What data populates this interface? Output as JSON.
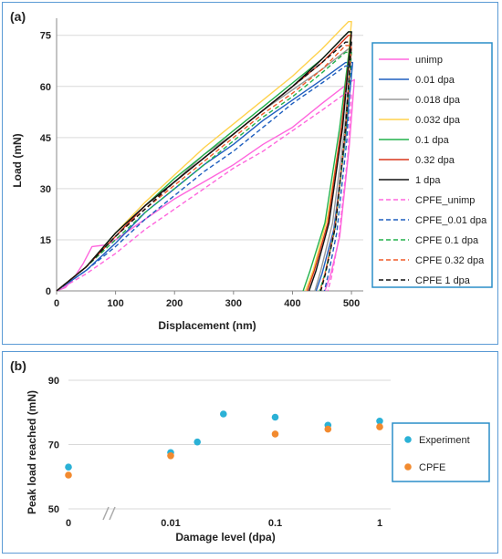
{
  "colors": {
    "unimp": "#ff66dd",
    "d0_01": "#1f5fbf",
    "d0_018": "#999999",
    "d0_032": "#ffd24d",
    "d0_1": "#22b14c",
    "d0_32": "#d9361c",
    "d1": "#111111",
    "cpfe_unimp": "#ff66dd",
    "cpfe_0_01": "#1f5fbf",
    "cpfe_0_1": "#22b14c",
    "cpfe_0_32": "#f05a28",
    "cpfe_1": "#111111",
    "experiment": "#2bb1d6",
    "cpfe": "#f28a2f",
    "frame": "#5b9bd5"
  },
  "chart_data": [
    {
      "type": "line",
      "panel_label": "(a)",
      "xlabel": "Displacement (nm)",
      "ylabel": "Load (mN)",
      "xlim": [
        0,
        520
      ],
      "ylim": [
        0,
        80
      ],
      "x_ticks": [
        "0",
        "100",
        "200",
        "300",
        "400",
        "500"
      ],
      "x_tick_values": [
        0,
        100,
        200,
        300,
        400,
        500
      ],
      "y_ticks": [
        "0",
        "15",
        "30",
        "45",
        "60",
        "75"
      ],
      "y_tick_values": [
        0,
        15,
        30,
        45,
        60,
        75
      ],
      "legend_position": "right",
      "series": [
        {
          "name": "unimp",
          "color_key": "unimp",
          "dashed": false,
          "points": [
            [
              0,
              0
            ],
            [
              15,
              1
            ],
            [
              30,
              4
            ],
            [
              45,
              8
            ],
            [
              60,
              13
            ],
            [
              85,
              13.5
            ],
            [
              100,
              15
            ],
            [
              150,
              21
            ],
            [
              200,
              27
            ],
            [
              250,
              32
            ],
            [
              300,
              37
            ],
            [
              350,
              43
            ],
            [
              400,
              48
            ],
            [
              450,
              55
            ],
            [
              495,
              61
            ],
            [
              505,
              62
            ],
            [
              496,
              42
            ],
            [
              480,
              16
            ],
            [
              465,
              5
            ],
            [
              455,
              0
            ]
          ]
        },
        {
          "name": "0.01 dpa",
          "color_key": "d0_01",
          "dashed": false,
          "points": [
            [
              0,
              0
            ],
            [
              50,
              6
            ],
            [
              100,
              14
            ],
            [
              150,
              23
            ],
            [
              200,
              30
            ],
            [
              250,
              37
            ],
            [
              300,
              43
            ],
            [
              350,
              50
            ],
            [
              400,
              56
            ],
            [
              450,
              62
            ],
            [
              490,
              67
            ],
            [
              502,
              67
            ],
            [
              490,
              45
            ],
            [
              470,
              18
            ],
            [
              450,
              5
            ],
            [
              440,
              0
            ]
          ]
        },
        {
          "name": "0.018 dpa",
          "color_key": "d0_018",
          "dashed": false,
          "points": [
            [
              0,
              0
            ],
            [
              50,
              7
            ],
            [
              100,
              16
            ],
            [
              150,
              25
            ],
            [
              200,
              32
            ],
            [
              250,
              40
            ],
            [
              300,
              46
            ],
            [
              350,
              53
            ],
            [
              400,
              59
            ],
            [
              450,
              65
            ],
            [
              495,
              71
            ],
            [
              500,
              71
            ],
            [
              488,
              47
            ],
            [
              468,
              20
            ],
            [
              448,
              6
            ],
            [
              438,
              0
            ]
          ]
        },
        {
          "name": "0.032 dpa",
          "color_key": "d0_032",
          "dashed": false,
          "points": [
            [
              0,
              0
            ],
            [
              50,
              7
            ],
            [
              100,
              17
            ],
            [
              150,
              26
            ],
            [
              200,
              34
            ],
            [
              250,
              42
            ],
            [
              300,
              49
            ],
            [
              350,
              56
            ],
            [
              400,
              63
            ],
            [
              450,
              71
            ],
            [
              495,
              79
            ],
            [
              500,
              79
            ],
            [
              485,
              50
            ],
            [
              460,
              22
            ],
            [
              435,
              6
            ],
            [
              422,
              0
            ]
          ]
        },
        {
          "name": "0.1 dpa",
          "color_key": "d0_1",
          "dashed": false,
          "points": [
            [
              0,
              0
            ],
            [
              50,
              7
            ],
            [
              100,
              17
            ],
            [
              150,
              25
            ],
            [
              200,
              33
            ],
            [
              250,
              40
            ],
            [
              300,
              47
            ],
            [
              350,
              54
            ],
            [
              400,
              61
            ],
            [
              450,
              68
            ],
            [
              495,
              76
            ],
            [
              500,
              76
            ],
            [
              480,
              48
            ],
            [
              455,
              20
            ],
            [
              430,
              6
            ],
            [
              418,
              0
            ]
          ]
        },
        {
          "name": "0.32 dpa",
          "color_key": "d0_32",
          "dashed": false,
          "points": [
            [
              0,
              0
            ],
            [
              50,
              7
            ],
            [
              100,
              16
            ],
            [
              150,
              25
            ],
            [
              200,
              32
            ],
            [
              250,
              39
            ],
            [
              300,
              46
            ],
            [
              350,
              53
            ],
            [
              400,
              60
            ],
            [
              450,
              67
            ],
            [
              495,
              75
            ],
            [
              500,
              75
            ],
            [
              483,
              48
            ],
            [
              460,
              20
            ],
            [
              437,
              6
            ],
            [
              425,
              0
            ]
          ]
        },
        {
          "name": "1 dpa",
          "color_key": "d1",
          "dashed": false,
          "points": [
            [
              0,
              0
            ],
            [
              50,
              7
            ],
            [
              100,
              17
            ],
            [
              150,
              25
            ],
            [
              200,
              32
            ],
            [
              250,
              39
            ],
            [
              300,
              46
            ],
            [
              350,
              53
            ],
            [
              400,
              60
            ],
            [
              450,
              68
            ],
            [
              495,
              76
            ],
            [
              500,
              76
            ],
            [
              485,
              48
            ],
            [
              462,
              20
            ],
            [
              440,
              6
            ],
            [
              428,
              0
            ]
          ]
        },
        {
          "name": "CPFE_unimp",
          "color_key": "cpfe_unimp",
          "dashed": true,
          "points": [
            [
              0,
              0
            ],
            [
              50,
              5
            ],
            [
              100,
              11
            ],
            [
              150,
              18
            ],
            [
              200,
              24
            ],
            [
              250,
              30
            ],
            [
              300,
              36
            ],
            [
              350,
              41
            ],
            [
              400,
              47
            ],
            [
              450,
              53
            ],
            [
              490,
              58
            ],
            [
              500,
              58
            ],
            [
              494,
              40
            ],
            [
              478,
              15
            ],
            [
              466,
              4
            ],
            [
              460,
              0
            ]
          ]
        },
        {
          "name": "CPFE_0.01 dpa",
          "color_key": "cpfe_0_01",
          "dashed": true,
          "points": [
            [
              0,
              0
            ],
            [
              50,
              6
            ],
            [
              100,
              13
            ],
            [
              150,
              21
            ],
            [
              200,
              28
            ],
            [
              250,
              35
            ],
            [
              300,
              41
            ],
            [
              350,
              48
            ],
            [
              400,
              55
            ],
            [
              450,
              61
            ],
            [
              490,
              66
            ],
            [
              500,
              66
            ],
            [
              492,
              44
            ],
            [
              475,
              17
            ],
            [
              461,
              5
            ],
            [
              454,
              0
            ]
          ]
        },
        {
          "name": "CPFE 0.1 dpa",
          "color_key": "cpfe_0_1",
          "dashed": true,
          "points": [
            [
              0,
              0
            ],
            [
              50,
              7
            ],
            [
              100,
              15
            ],
            [
              150,
              23
            ],
            [
              200,
              30
            ],
            [
              250,
              37
            ],
            [
              300,
              44
            ],
            [
              350,
              51
            ],
            [
              400,
              57
            ],
            [
              450,
              64
            ],
            [
              490,
              70
            ],
            [
              500,
              70
            ],
            [
              490,
              46
            ],
            [
              472,
              18
            ],
            [
              455,
              5
            ],
            [
              446,
              0
            ]
          ]
        },
        {
          "name": "CPFE 0.32 dpa",
          "color_key": "cpfe_0_32",
          "dashed": true,
          "points": [
            [
              0,
              0
            ],
            [
              50,
              7
            ],
            [
              100,
              16
            ],
            [
              150,
              24
            ],
            [
              200,
              31
            ],
            [
              250,
              38
            ],
            [
              300,
              45
            ],
            [
              350,
              52
            ],
            [
              400,
              58
            ],
            [
              450,
              65
            ],
            [
              490,
              72
            ],
            [
              500,
              72
            ],
            [
              490,
              47
            ],
            [
              472,
              19
            ],
            [
              455,
              5
            ],
            [
              447,
              0
            ]
          ]
        },
        {
          "name": "CPFE 1 dpa",
          "color_key": "cpfe_1",
          "dashed": true,
          "points": [
            [
              0,
              0
            ],
            [
              50,
              7
            ],
            [
              100,
              16
            ],
            [
              150,
              24
            ],
            [
              200,
              32
            ],
            [
              250,
              39
            ],
            [
              300,
              46
            ],
            [
              350,
              53
            ],
            [
              400,
              60
            ],
            [
              450,
              67
            ],
            [
              490,
              73
            ],
            [
              500,
              73
            ],
            [
              490,
              48
            ],
            [
              473,
              19
            ],
            [
              456,
              5
            ],
            [
              448,
              0
            ]
          ]
        }
      ]
    },
    {
      "type": "scatter",
      "panel_label": "(b)",
      "xlabel": "Damage level (dpa)",
      "ylabel": "Peak load reached (mN)",
      "ylim": [
        50,
        90
      ],
      "y_ticks": [
        "50",
        "70",
        "90"
      ],
      "y_tick_values": [
        50,
        70,
        90
      ],
      "x_ticks": [
        "0",
        "0.01",
        "0.1",
        "1"
      ],
      "x_tick_values": [
        0,
        0.01,
        0.1,
        1
      ],
      "x_scale": "log with axis break between 0 and 0.01",
      "legend_position": "right",
      "series": [
        {
          "name": "Experiment",
          "color_key": "experiment",
          "points": [
            [
              0,
              63
            ],
            [
              0.01,
              67.5
            ],
            [
              0.018,
              70.8
            ],
            [
              0.032,
              79.5
            ],
            [
              0.1,
              78.5
            ],
            [
              0.32,
              76
            ],
            [
              1,
              77.3
            ]
          ]
        },
        {
          "name": "CPFE",
          "color_key": "cpfe",
          "points": [
            [
              0,
              60.5
            ],
            [
              0.01,
              66.5
            ],
            [
              0.1,
              73.3
            ],
            [
              0.32,
              74.8
            ],
            [
              1,
              75.5
            ]
          ]
        }
      ]
    }
  ]
}
